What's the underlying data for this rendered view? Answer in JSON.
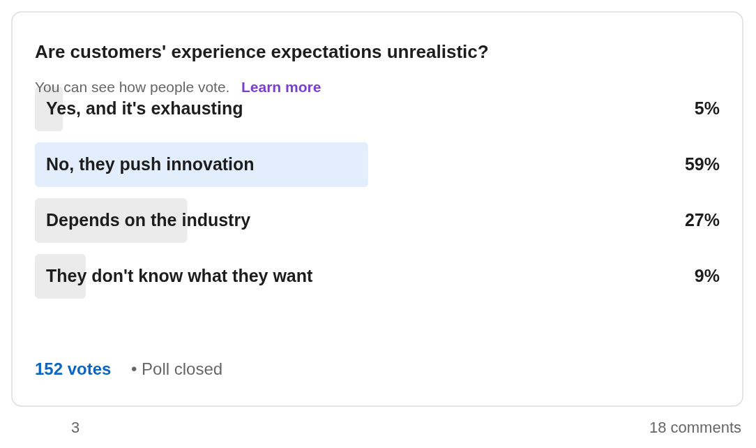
{
  "chart_data": {
    "type": "bar",
    "orientation": "horizontal",
    "title": "Are customers' experience expectations unrealistic?",
    "subtitle": "You can see how people vote.",
    "categories": [
      "Yes, and it's exhausting",
      "No, they push innovation",
      "Depends on the industry",
      "They don't know what they want"
    ],
    "values": [
      5,
      59,
      27,
      9
    ],
    "colors": [
      "#ebebeb",
      "#e3eefc",
      "#ebebeb",
      "#ebebeb"
    ],
    "value_labels": [
      "5%",
      "59%",
      "27%",
      "9%"
    ],
    "annotations": [
      "Learn more",
      "152 votes",
      "• Poll closed",
      "3",
      "18 comments"
    ]
  }
}
